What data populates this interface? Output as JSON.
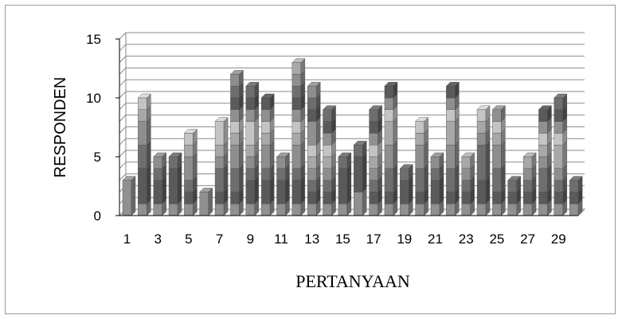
{
  "chart_data": {
    "type": "bar",
    "stacked": true,
    "style_3d": true,
    "ylabel": "RESPONDEN",
    "xlabel": "PERTANYAAN",
    "ylim": [
      0,
      15
    ],
    "yticks": [
      0,
      5,
      10,
      15
    ],
    "grid": true,
    "legend": "none",
    "categories": [
      1,
      2,
      3,
      4,
      5,
      6,
      7,
      8,
      9,
      10,
      11,
      12,
      13,
      14,
      15,
      16,
      17,
      18,
      19,
      20,
      21,
      22,
      23,
      24,
      25,
      26,
      27,
      28,
      29,
      30
    ],
    "xtick_labels": [
      "1",
      "3",
      "5",
      "7",
      "9",
      "11",
      "13",
      "15",
      "17",
      "19",
      "21",
      "23",
      "25",
      "27",
      "29"
    ],
    "totals": [
      3,
      10,
      5,
      5,
      7,
      2,
      8,
      12,
      11,
      10,
      5,
      13,
      11,
      9,
      5,
      6,
      9,
      11,
      4,
      8,
      5,
      11,
      5,
      9,
      9,
      3,
      5,
      9,
      10,
      3
    ],
    "segment_palette": [
      "#909090",
      "#5a5a5a",
      "#6e6e6e",
      "#8e8e8e",
      "#a8a8a8",
      "#c4c4c4"
    ],
    "stacks": [
      [
        3
      ],
      [
        1,
        3,
        2,
        2,
        1,
        1
      ],
      [
        1,
        2,
        1,
        1
      ],
      [
        1,
        3,
        1
      ],
      [
        1,
        1,
        1,
        2,
        1,
        1
      ],
      [
        2
      ],
      [
        1,
        1,
        2,
        1,
        1,
        2
      ],
      [
        1,
        1,
        2,
        2,
        1,
        1,
        1,
        1,
        1,
        1
      ],
      [
        1,
        2,
        1,
        1,
        1,
        2,
        1,
        1,
        1
      ],
      [
        1,
        2,
        1,
        2,
        1,
        1,
        1,
        1
      ],
      [
        1,
        2,
        1,
        1
      ],
      [
        1,
        2,
        1,
        2,
        1,
        1,
        1,
        1,
        1,
        1,
        1
      ],
      [
        1,
        1,
        1,
        1,
        1,
        1,
        2,
        1,
        1,
        1
      ],
      [
        1,
        1,
        1,
        1,
        1,
        1,
        1,
        1,
        1
      ],
      [
        1,
        3,
        1
      ],
      [
        2,
        3,
        1
      ],
      [
        1,
        1,
        1,
        1,
        1,
        1,
        1,
        1,
        1
      ],
      [
        1,
        1,
        2,
        2,
        2,
        1,
        1,
        1
      ],
      [
        1,
        2,
        1
      ],
      [
        1,
        1,
        2,
        2,
        1,
        1
      ],
      [
        1,
        2,
        1,
        1
      ],
      [
        1,
        1,
        2,
        2,
        2,
        1,
        1,
        1
      ],
      [
        1,
        1,
        1,
        1,
        1
      ],
      [
        1,
        2,
        3,
        1,
        1,
        1
      ],
      [
        1,
        1,
        2,
        2,
        1,
        1,
        1
      ],
      [
        1,
        1,
        1
      ],
      [
        1,
        1,
        1,
        1,
        1
      ],
      [
        1,
        1,
        2,
        1,
        1,
        1,
        1,
        1
      ],
      [
        1,
        1,
        1,
        1,
        2,
        1,
        1,
        1,
        1
      ],
      [
        1,
        1,
        1
      ]
    ]
  }
}
